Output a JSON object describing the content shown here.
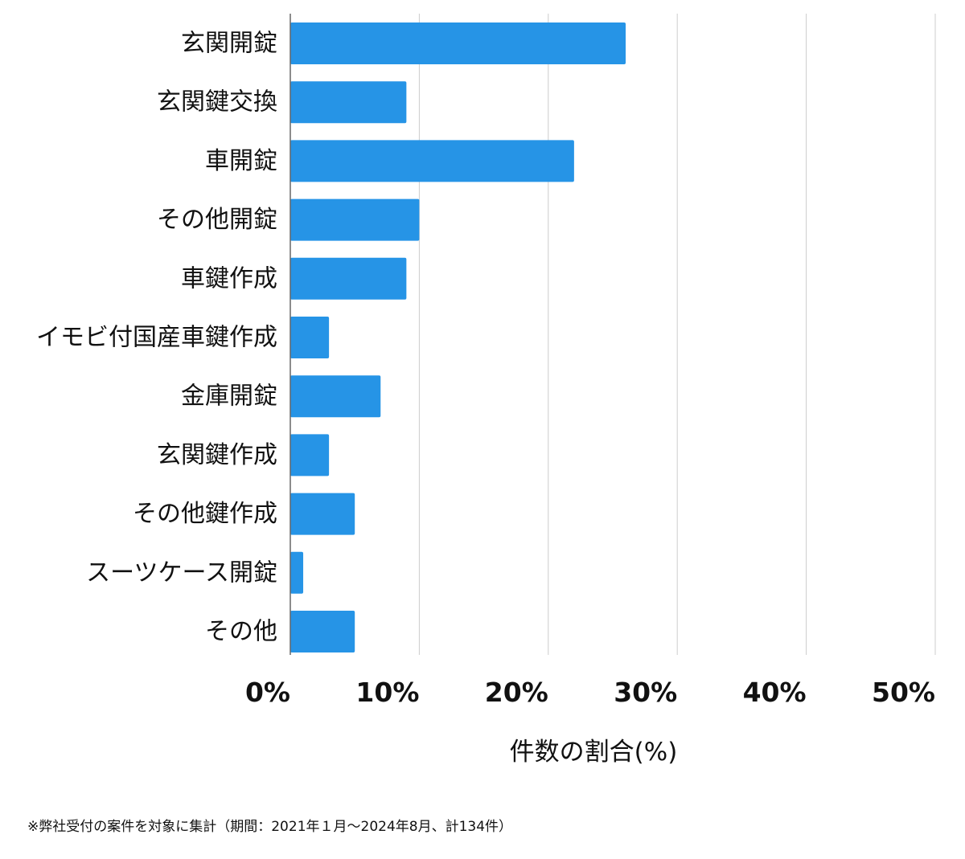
{
  "chart_data": {
    "type": "bar",
    "orientation": "horizontal",
    "categories": [
      "玄関開錠",
      "玄関鍵交換",
      "車開錠",
      "その他開錠",
      "車鍵作成",
      "イモビ付国産車鍵作成",
      "金庫開錠",
      "玄関鍵作成",
      "その他鍵作成",
      "スーツケース開錠",
      "その他"
    ],
    "values": [
      26,
      9,
      22,
      10,
      9,
      3,
      7,
      3,
      5,
      1,
      5
    ],
    "xlim": [
      0,
      50
    ],
    "xticks": [
      "0%",
      "10%",
      "20%",
      "30%",
      "40%",
      "50%"
    ],
    "xlabel": "件数の割合(%)",
    "ylabel": "",
    "title": "",
    "grid": true,
    "colors": {
      "bar": "#2694e6",
      "grid": "#cccccc",
      "axis": "#666666"
    }
  },
  "footnote": "※弊社受付の案件を対象に集計（期間：2021年１月〜2024年8月、計134件）"
}
